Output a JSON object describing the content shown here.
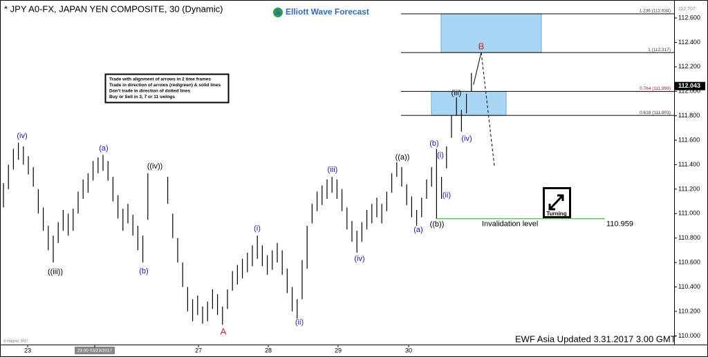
{
  "chart_data": {
    "type": "range-bar",
    "title": "* JPY A0-FX, JAPAN YEN COMPOSITE, 30 (Dynamic)",
    "brand": "Elliott Wave Forecast",
    "copyright": "© eSignal, 2017",
    "footer": "EWF Asia Updated 3.31.2017 3.00 GMT",
    "notes": [
      "Trade with alignment of arrows in 2 time frames",
      "Trade in direction of arrows (red/green) & solid lines",
      "Don't trade in direction of dotted lines",
      "Buy or Sell in 3, 7 or 11 swings"
    ],
    "badge": "Turning",
    "color": "#000000",
    "high": [
      111.25,
      111.4,
      111.53,
      111.58,
      111.55,
      111.47,
      111.38,
      111.2,
      111.05,
      110.9,
      110.82,
      110.93,
      111.03,
      111.0,
      111.04,
      111.18,
      111.28,
      111.33,
      111.43,
      111.46,
      111.48,
      111.43,
      111.3,
      111.15,
      111.04,
      111.08,
      110.99,
      110.9,
      110.82,
      111.33,
      null,
      null,
      null,
      111.3,
      111.0,
      110.8,
      110.6,
      110.4,
      110.3,
      110.33,
      110.24,
      110.28,
      110.38,
      110.34,
      110.24,
      110.38,
      110.53,
      110.58,
      110.63,
      110.68,
      110.74,
      110.82,
      110.74,
      110.66,
      110.7,
      110.76,
      110.7,
      110.55,
      110.4,
      110.3,
      110.62,
      110.9,
      111.08,
      111.18,
      111.23,
      111.28,
      111.3,
      111.28,
      111.2,
      111.05,
      110.94,
      110.86,
      110.93,
      111.03,
      111.08,
      111.13,
      111.08,
      111.18,
      111.33,
      111.42,
      111.38,
      111.24,
      111.14,
      111.03,
      111.13,
      111.28,
      111.38,
      111.53,
      111.3,
      111.55,
      111.8,
      111.95,
      111.85,
      111.98,
      112.15
    ],
    "low": [
      111.05,
      111.2,
      111.36,
      111.44,
      111.4,
      111.32,
      111.22,
      111.0,
      110.86,
      110.7,
      110.6,
      110.76,
      110.86,
      110.82,
      110.86,
      111.0,
      111.12,
      111.17,
      111.27,
      111.33,
      111.35,
      111.27,
      111.1,
      110.96,
      110.86,
      110.92,
      110.82,
      110.7,
      110.6,
      110.95,
      null,
      null,
      null,
      111.08,
      110.8,
      110.6,
      110.4,
      110.2,
      110.12,
      110.17,
      110.1,
      110.12,
      110.22,
      110.17,
      110.09,
      110.22,
      110.37,
      110.42,
      110.47,
      110.52,
      110.57,
      110.63,
      110.57,
      110.5,
      110.54,
      110.6,
      110.5,
      110.35,
      110.2,
      110.14,
      110.3,
      110.55,
      110.92,
      111.02,
      111.07,
      111.12,
      111.17,
      111.12,
      111.02,
      110.87,
      110.77,
      110.68,
      110.77,
      110.87,
      110.92,
      110.97,
      110.92,
      111.02,
      111.17,
      111.3,
      111.22,
      111.07,
      110.97,
      110.9,
      110.97,
      111.12,
      111.22,
      110.96,
      111.12,
      111.37,
      111.62,
      111.8,
      111.67,
      111.82,
      112.0
    ],
    "ylim": [
      109.94,
      112.73
    ],
    "yticks": [
      {
        "value": 110,
        "label": "110.000"
      },
      {
        "value": 110.2,
        "label": "110.200"
      },
      {
        "value": 110.4,
        "label": "110.400"
      },
      {
        "value": 110.6,
        "label": "110.600"
      },
      {
        "value": 110.8,
        "label": "110.800"
      },
      {
        "value": 111,
        "label": "111.000"
      },
      {
        "value": 111.2,
        "label": "111.200"
      },
      {
        "value": 111.4,
        "label": "111.400"
      },
      {
        "value": 111.6,
        "label": "111.600"
      },
      {
        "value": 111.8,
        "label": "111.800"
      },
      {
        "value": 112,
        "label": "112.000"
      },
      {
        "value": 112.2,
        "label": "112.200"
      },
      {
        "value": 112.4,
        "label": "112.400"
      },
      {
        "value": 112.6,
        "label": "112.600"
      }
    ],
    "x_labels": [
      "23",
      "23:00 03/23/2017",
      "27",
      "28",
      "29",
      "30"
    ],
    "axis_top": {
      "value": 112.707,
      "label": "112.707"
    },
    "last_price": {
      "value": 112.043,
      "label": "112.043"
    },
    "fib_levels": [
      {
        "value": 112.634,
        "label": "1.236 (112.634)"
      },
      {
        "value": 112.317,
        "label": "1 (112.317)"
      },
      {
        "value": 111.999,
        "label": "0.764 (111.999)"
      },
      {
        "value": 111.803,
        "label": "0.618 (111.803)"
      }
    ],
    "invalidation": {
      "text": "Invalidation level",
      "value": 110.959,
      "label": "110.959",
      "color": "#5ec45e"
    },
    "wave_labels": [
      {
        "text": "(iv)",
        "color": "#1a1aa6"
      },
      {
        "text": "((iii))",
        "color": "#000000"
      },
      {
        "text": "(a)",
        "color": "#1a1aa6"
      },
      {
        "text": "(b)",
        "color": "#1a1aa6"
      },
      {
        "text": "((iv))",
        "color": "#000000"
      },
      {
        "text": "A",
        "color": "#d0202a"
      },
      {
        "text": "(i)",
        "color": "#1a1aa6"
      },
      {
        "text": "(ii)",
        "color": "#1a1aa6"
      },
      {
        "text": "(iii)",
        "color": "#1a1aa6"
      },
      {
        "text": "(iv)",
        "color": "#1a1aa6"
      },
      {
        "text": "((a))",
        "color": "#000000"
      },
      {
        "text": "(a)",
        "color": "#1a1aa6"
      },
      {
        "text": "(b)",
        "color": "#1a1aa6"
      },
      {
        "text": "(i)",
        "color": "#1a1aa6"
      },
      {
        "text": "(ii)",
        "color": "#1a1aa6"
      },
      {
        "text": "((b))",
        "color": "#000000"
      },
      {
        "text": "(iii)",
        "color": "#000000"
      },
      {
        "text": "(iv)",
        "color": "#1a1aa6"
      },
      {
        "text": "B",
        "color": "#d0202a"
      }
    ]
  }
}
